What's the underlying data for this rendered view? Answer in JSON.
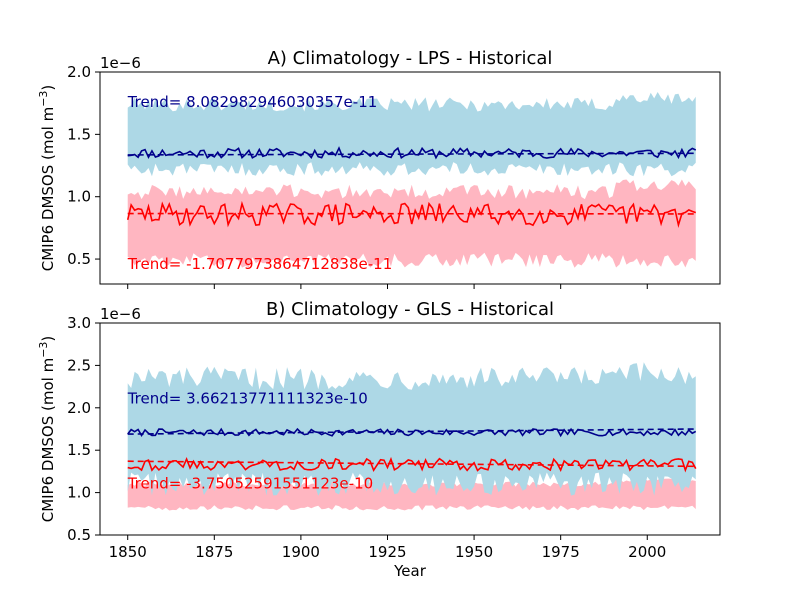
{
  "figure": {
    "xlabel": "Year"
  },
  "chart_data": [
    {
      "type": "line",
      "title": "A) Climatology - LPS - Historical",
      "ylabel": "CMIP6 DMSOS (mol m",
      "ylabel_sup": "−3",
      "ylabel_close": ")",
      "offset_text": "1e−6",
      "xlim": [
        1842,
        2021
      ],
      "ylim": [
        0.3,
        2.0
      ],
      "xticks": [
        1850,
        1875,
        1900,
        1925,
        1950,
        1975,
        2000
      ],
      "yticks": [
        0.5,
        1.0,
        1.5,
        2.0
      ],
      "ytick_labels": [
        "0.5",
        "1.0",
        "1.5",
        "2.0"
      ],
      "x_start": 1850,
      "x_end": 2014,
      "colors": {
        "band_high": "#add8e6",
        "line_high": "#00008b",
        "band_low": "#ffb6c1",
        "line_low": "#ff0000"
      },
      "annotations": [
        {
          "text": "Trend= 8.082982946030357e-11",
          "color": "#00008b",
          "x": 1850,
          "y": 1.72
        },
        {
          "text": "Trend= -1.7077973864712838e-11",
          "color": "#ff0000",
          "x": 1850,
          "y": 0.42
        }
      ],
      "series": [
        {
          "role": "band_high",
          "upper_mean": 1.74,
          "lower_mean": 1.22
        },
        {
          "role": "line_high",
          "mean": 1.35,
          "amp": 0.04,
          "seed": 11
        },
        {
          "role": "trend_high",
          "y0": 1.335,
          "y1": 1.348
        },
        {
          "role": "band_low",
          "upper_mean": 1.04,
          "lower_mean": 0.49
        },
        {
          "role": "line_low",
          "mean": 0.86,
          "amp": 0.09,
          "seed": 29
        },
        {
          "role": "trend_low",
          "y0": 0.865,
          "y1": 0.862
        }
      ]
    },
    {
      "type": "line",
      "title": "B) Climatology - GLS - Historical",
      "ylabel": "CMIP6 DMSOS (mol m",
      "ylabel_sup": "−3",
      "ylabel_close": ")",
      "offset_text": "1e−6",
      "xlim": [
        1842,
        2021
      ],
      "ylim": [
        0.5,
        3.0
      ],
      "xticks": [
        1850,
        1875,
        1900,
        1925,
        1950,
        1975,
        2000
      ],
      "xtick_labels": [
        "1850",
        "1875",
        "1900",
        "1925",
        "1950",
        "1975",
        "2000"
      ],
      "yticks": [
        0.5,
        1.0,
        1.5,
        2.0,
        2.5,
        3.0
      ],
      "ytick_labels": [
        "0.5",
        "1.0",
        "1.5",
        "2.0",
        "2.5",
        "3.0"
      ],
      "x_start": 1850,
      "x_end": 2014,
      "colors": {
        "band_high": "#add8e6",
        "line_high": "#00008b",
        "band_low": "#ffb6c1",
        "line_low": "#ff0000"
      },
      "annotations": [
        {
          "text": "Trend= 3.66213771111323e-10",
          "color": "#00008b",
          "x": 1850,
          "y": 2.05
        },
        {
          "text": "Trend= -3.75052591551123e-10",
          "color": "#ff0000",
          "x": 1850,
          "y": 1.05
        }
      ],
      "series": [
        {
          "role": "band_low",
          "upper_mean": 1.1,
          "lower_mean": 0.82
        },
        {
          "role": "band_high",
          "upper_mean": 2.35,
          "lower_mean": 1.1
        },
        {
          "role": "line_high",
          "mean": 1.71,
          "amp": 0.04,
          "seed": 7
        },
        {
          "role": "trend_high",
          "y0": 1.69,
          "y1": 1.75
        },
        {
          "role": "line_low",
          "mean": 1.33,
          "amp": 0.07,
          "seed": 43
        },
        {
          "role": "trend_low",
          "y0": 1.37,
          "y1": 1.31
        }
      ]
    }
  ]
}
